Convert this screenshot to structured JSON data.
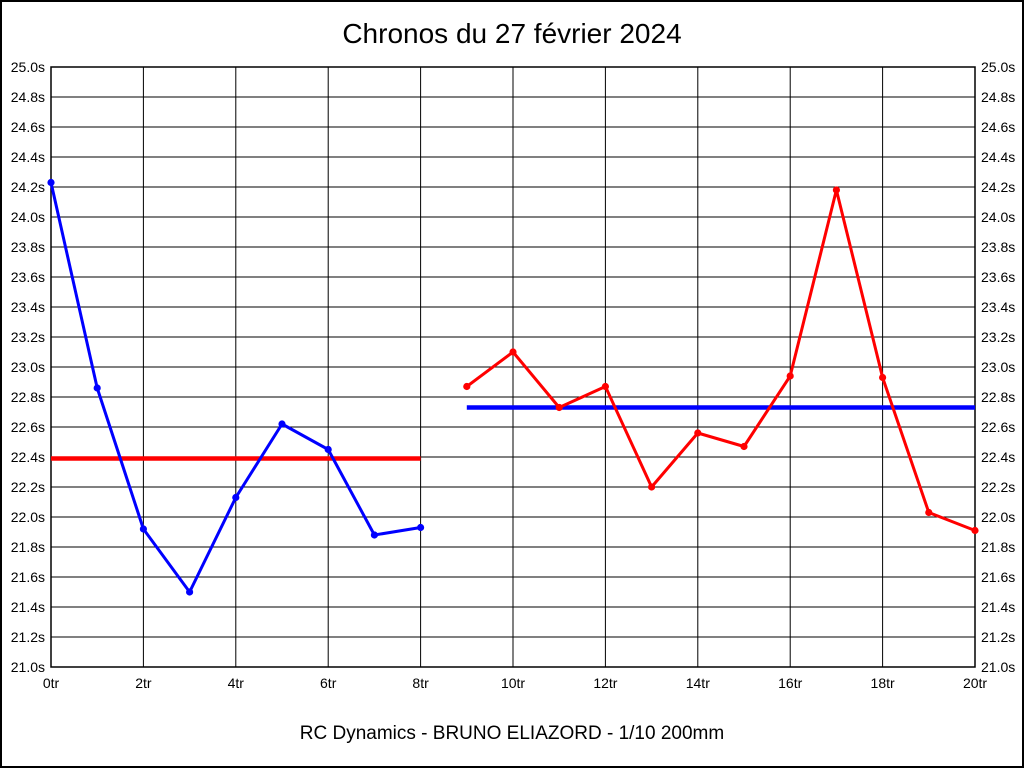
{
  "chart_data": {
    "type": "line",
    "title": "Chronos du 27 février 2024",
    "caption": "RC Dynamics - BRUNO ELIAZORD - 1/10 200mm",
    "x_unit": "tr",
    "y_unit": "s",
    "xlim": [
      0,
      20
    ],
    "ylim": [
      21.0,
      25.0
    ],
    "xtick_step": 2,
    "ytick_step": 0.2,
    "grid": true,
    "legend": "none",
    "xtick_labels": [
      "0tr",
      "2tr",
      "4tr",
      "6tr",
      "8tr",
      "10tr",
      "12tr",
      "14tr",
      "16tr",
      "18tr",
      "20tr"
    ],
    "ytick_labels": [
      "25.0s",
      "24.8s",
      "24.6s",
      "24.4s",
      "24.2s",
      "24.0s",
      "23.8s",
      "23.6s",
      "23.4s",
      "23.2s",
      "23.0s",
      "22.8s",
      "22.6s",
      "22.4s",
      "22.2s",
      "22.0s",
      "21.8s",
      "21.6s",
      "21.4s",
      "21.2s",
      "21.0s"
    ],
    "series": [
      {
        "name": "run-1-blue",
        "color": "#0000ff",
        "x": [
          0,
          1,
          2,
          3,
          4,
          5,
          6,
          7,
          8
        ],
        "values": [
          24.23,
          22.86,
          21.92,
          21.5,
          22.13,
          22.62,
          22.45,
          21.88,
          21.93
        ]
      },
      {
        "name": "run-2-red",
        "color": "#ff0000",
        "x": [
          9,
          10,
          11,
          12,
          13,
          14,
          15,
          16,
          17,
          18,
          19,
          20
        ],
        "values": [
          22.87,
          23.1,
          22.73,
          22.87,
          22.2,
          22.56,
          22.47,
          22.94,
          24.18,
          22.93,
          22.03,
          21.91
        ]
      }
    ],
    "mean_lines": [
      {
        "name": "run-1-average",
        "color": "#ff0000",
        "value": 22.39,
        "x_start": 0,
        "x_end": 8
      },
      {
        "name": "run-2-average",
        "color": "#0000ff",
        "value": 22.73,
        "x_start": 9,
        "x_end": 20
      }
    ]
  }
}
